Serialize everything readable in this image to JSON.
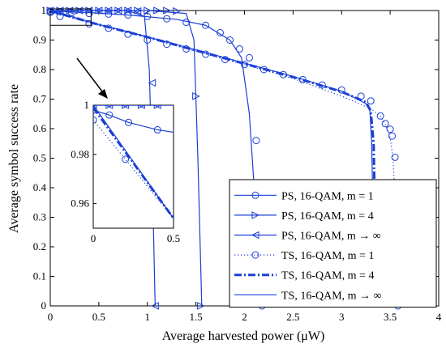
{
  "chart_data": {
    "type": "line",
    "xlabel": "Average harvested power (μW)",
    "ylabel": "Average symbol success rate",
    "xlim": [
      0,
      4
    ],
    "ylim": [
      0,
      1
    ],
    "xticks": [
      "0",
      "0.5",
      "1",
      "1.5",
      "2",
      "2.5",
      "3",
      "3.5",
      "4"
    ],
    "yticks": [
      "0",
      "0.1",
      "0.2",
      "0.3",
      "0.4",
      "0.5",
      "0.6",
      "0.7",
      "0.8",
      "0.9",
      "1"
    ],
    "grid": false,
    "legend_position": "bottom-right",
    "color": "#1a3fd6",
    "series": [
      {
        "name": "PS, 16-QAM, m = 1",
        "style": "solid",
        "marker": "circle",
        "x": [
          0,
          0.1,
          0.4,
          0.8,
          1.3,
          1.6,
          1.85,
          1.97,
          2.05,
          2.12,
          2.18
        ],
        "y": [
          0.998,
          0.997,
          0.993,
          0.985,
          0.97,
          0.95,
          0.9,
          0.84,
          0.65,
          0.3,
          0.0
        ],
        "marker_x": [
          0,
          0.1,
          0.22,
          0.4,
          0.6,
          0.8,
          1.0,
          1.2,
          1.4,
          1.6,
          1.75,
          1.85,
          1.95,
          2.05,
          2.12,
          2.18
        ],
        "marker_y": [
          0.998,
          0.996,
          0.993,
          0.99,
          0.988,
          0.985,
          0.98,
          0.972,
          0.96,
          0.95,
          0.925,
          0.9,
          0.87,
          0.84,
          0.56,
          0.0
        ]
      },
      {
        "name": "PS, 16-QAM, m = 4",
        "style": "solid",
        "marker": "triangle-right",
        "x": [
          0,
          0.5,
          1.0,
          1.4,
          1.48,
          1.52,
          1.56
        ],
        "y": [
          1.0,
          1.0,
          1.0,
          0.99,
          0.9,
          0.5,
          0.0
        ],
        "marker_x": [
          0,
          0.1,
          0.2,
          0.3,
          0.4,
          0.5,
          0.6,
          0.7,
          0.8,
          0.9,
          1.0,
          1.1,
          1.2,
          1.3,
          1.5,
          1.55
        ],
        "marker_y": [
          1.0,
          1.0,
          1.0,
          1.0,
          1.0,
          1.0,
          1.0,
          1.0,
          1.0,
          1.0,
          1.0,
          1.0,
          1.0,
          0.998,
          0.71,
          0.0
        ]
      },
      {
        "name": "PS, 16-QAM, m → ∞",
        "style": "solid",
        "marker": "triangle-left",
        "x": [
          0,
          0.8,
          0.97,
          1.02,
          1.06,
          1.08
        ],
        "y": [
          1.0,
          1.0,
          0.98,
          0.8,
          0.3,
          0.0
        ],
        "marker_x": [
          0,
          0.1,
          0.2,
          0.3,
          0.4,
          0.5,
          0.6,
          0.7,
          0.8,
          0.9,
          1.05,
          1.08
        ],
        "marker_y": [
          1.0,
          1.0,
          1.0,
          1.0,
          1.0,
          1.0,
          1.0,
          1.0,
          1.0,
          0.998,
          0.755,
          0.0
        ]
      },
      {
        "name": "TS, 16-QAM, m = 1",
        "style": "dotted",
        "marker": "circle",
        "x": [
          0,
          0.5,
          1.0,
          1.5,
          2.0,
          2.5,
          3.0,
          3.3,
          3.4,
          3.45,
          3.5,
          3.53,
          3.56,
          3.58
        ],
        "y": [
          0.994,
          0.95,
          0.91,
          0.862,
          0.817,
          0.77,
          0.71,
          0.668,
          0.642,
          0.615,
          0.57,
          0.5,
          0.3,
          0.0
        ],
        "marker_x": [
          0,
          0.1,
          0.4,
          0.6,
          0.8,
          1.0,
          1.2,
          1.4,
          1.6,
          1.8,
          2.0,
          2.2,
          2.4,
          2.6,
          2.8,
          3.0,
          3.2,
          3.3,
          3.4,
          3.45,
          3.5,
          3.52,
          3.55,
          3.58
        ],
        "marker_y": [
          0.994,
          0.98,
          0.955,
          0.94,
          0.92,
          0.9,
          0.886,
          0.87,
          0.852,
          0.834,
          0.817,
          0.8,
          0.783,
          0.766,
          0.748,
          0.731,
          0.71,
          0.694,
          0.643,
          0.617,
          0.598,
          0.575,
          0.503,
          0.0
        ]
      },
      {
        "name": "TS, 16-QAM, m = 4",
        "style": "dashdot",
        "marker": "none",
        "x": [
          0,
          0.5,
          1.0,
          1.5,
          2.0,
          2.5,
          3.0,
          3.25,
          3.3,
          3.33,
          3.35,
          3.36
        ],
        "y": [
          0.999,
          0.952,
          0.91,
          0.865,
          0.82,
          0.775,
          0.725,
          0.69,
          0.66,
          0.55,
          0.2,
          0.0
        ]
      },
      {
        "name": "TS, 16-QAM, m → ∞",
        "style": "solid",
        "marker": "none",
        "x": [
          0,
          0.5,
          1.0,
          1.5,
          2.0,
          2.5,
          3.0,
          3.25,
          3.29,
          3.31,
          3.33,
          3.34
        ],
        "y": [
          1.0,
          0.953,
          0.911,
          0.867,
          0.822,
          0.777,
          0.727,
          0.685,
          0.67,
          0.55,
          0.2,
          0.0
        ]
      }
    ],
    "inset": {
      "xlim": [
        0,
        0.5
      ],
      "ylim": [
        0.95,
        1.0
      ],
      "xticks": [
        "0",
        "0.5"
      ],
      "yticks": [
        "0.96",
        "0.98",
        "1"
      ],
      "series": [
        {
          "ref": 0,
          "x": [
            0,
            0.1,
            0.22,
            0.4,
            0.5
          ],
          "y": [
            0.998,
            0.996,
            0.993,
            0.99,
            0.989
          ],
          "marker_x": [
            0,
            0.1,
            0.22,
            0.4
          ],
          "marker_y": [
            0.998,
            0.996,
            0.993,
            0.99
          ]
        },
        {
          "ref": 1,
          "x": [
            0,
            0.5
          ],
          "y": [
            1.0,
            1.0
          ],
          "marker_x": [
            0,
            0.1,
            0.2,
            0.3,
            0.4
          ],
          "marker_y": [
            1.0,
            1.0,
            1.0,
            1.0,
            1.0
          ]
        },
        {
          "ref": 2,
          "x": [
            0,
            0.5
          ],
          "y": [
            1.0,
            1.0
          ],
          "marker_x": [
            0,
            0.1,
            0.2,
            0.3,
            0.4
          ],
          "marker_y": [
            1.0,
            1.0,
            1.0,
            1.0,
            1.0
          ]
        },
        {
          "ref": 3,
          "x": [
            0,
            0.1,
            0.2,
            0.3,
            0.4,
            0.5
          ],
          "y": [
            0.994,
            0.986,
            0.978,
            0.97,
            0.962,
            0.954
          ],
          "marker_x": [
            0,
            0.2
          ],
          "marker_y": [
            0.994,
            0.978
          ]
        },
        {
          "ref": 4,
          "x": [
            0,
            0.5
          ],
          "y": [
            0.999,
            0.954
          ],
          "marker_x": [],
          "marker_y": []
        },
        {
          "ref": 5,
          "x": [
            0,
            0.5
          ],
          "y": [
            1.0,
            0.954
          ],
          "marker_x": [],
          "marker_y": []
        }
      ]
    }
  }
}
